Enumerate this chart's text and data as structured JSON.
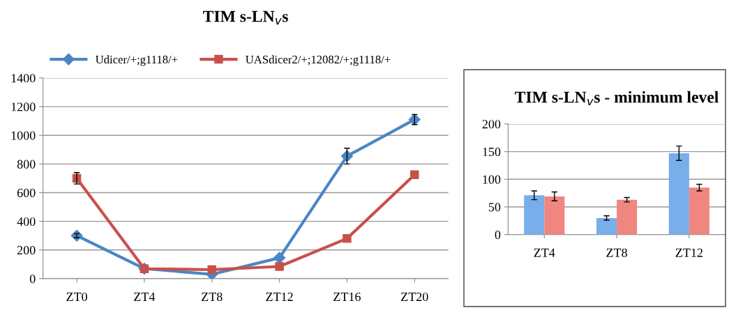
{
  "chart_data": [
    {
      "type": "line",
      "title": "TIM s-LN$_{v}$s",
      "categories": [
        "ZT0",
        "ZT4",
        "ZT8",
        "ZT12",
        "ZT16",
        "ZT20"
      ],
      "ylim": [
        0,
        1400
      ],
      "yticks": [
        0,
        200,
        400,
        600,
        800,
        1000,
        1200,
        1400
      ],
      "grid": "y",
      "legend": "top",
      "series": [
        {
          "name": "Udicer/+;g1118/+",
          "color": "#4a86c5",
          "marker": "diamond",
          "values": [
            300,
            70,
            30,
            145,
            855,
            1110
          ],
          "errors": [
            15,
            null,
            null,
            null,
            55,
            35
          ]
        },
        {
          "name": "UASdicer2/+;12082/+;g1118/+",
          "color": "#c8504b",
          "marker": "square",
          "values": [
            700,
            69,
            63,
            85,
            280,
            725
          ],
          "errors": [
            40,
            null,
            null,
            null,
            null,
            null
          ]
        }
      ]
    },
    {
      "type": "bar",
      "title": "TIM s-LN$_{v}$s - minimum level",
      "categories": [
        "ZT4",
        "ZT8",
        "ZT12"
      ],
      "ylim": [
        0,
        200
      ],
      "yticks": [
        0,
        50,
        100,
        150,
        200
      ],
      "grid": "y",
      "series": [
        {
          "color": "#78aeea",
          "values": [
            71,
            30,
            147
          ],
          "errors": [
            8,
            4,
            13
          ]
        },
        {
          "color": "#ef8680",
          "values": [
            69,
            63,
            85
          ],
          "errors": [
            8,
            4,
            6
          ]
        }
      ]
    }
  ]
}
